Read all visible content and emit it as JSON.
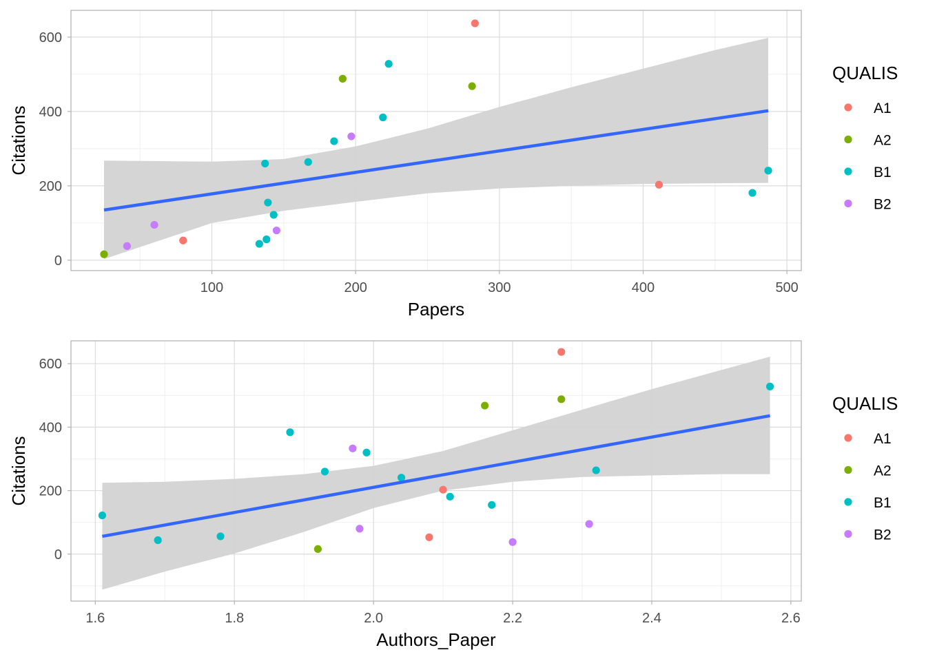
{
  "legend": {
    "title": "QUALIS",
    "entries": [
      {
        "label": "A1",
        "color": "#F8766D"
      },
      {
        "label": "A2",
        "color": "#7CAE00"
      },
      {
        "label": "B1",
        "color": "#00BFC4"
      },
      {
        "label": "B2",
        "color": "#C77CFF"
      }
    ]
  },
  "colors": {
    "fit_line": "#3366FF",
    "confidence_band": "#D3D3D3",
    "grid_major": "#DCDCDC",
    "grid_minor": "#EFEFEF",
    "panel_border": "#B3B3B3"
  },
  "chart_data": [
    {
      "type": "scatter",
      "xlabel": "Papers",
      "ylabel": "Citations",
      "xlim": [
        2,
        510
      ],
      "ylim": [
        -28,
        672
      ],
      "x_ticks": [
        100,
        200,
        300,
        400,
        500
      ],
      "y_ticks": [
        0,
        200,
        400,
        600
      ],
      "grid": true,
      "legend_position": "right",
      "series": [
        {
          "name": "A1",
          "points": [
            [
              80,
              53
            ],
            [
              283,
              637
            ],
            [
              411,
              203
            ]
          ]
        },
        {
          "name": "A2",
          "points": [
            [
              25,
              16
            ],
            [
              191,
              488
            ],
            [
              281,
              468
            ]
          ]
        },
        {
          "name": "B1",
          "points": [
            [
              133,
              44
            ],
            [
              137,
              260
            ],
            [
              138,
              56
            ],
            [
              139,
              155
            ],
            [
              143,
              122
            ],
            [
              167,
              264
            ],
            [
              185,
              320
            ],
            [
              219,
              384
            ],
            [
              223,
              528
            ],
            [
              476,
              181
            ],
            [
              487,
              241
            ]
          ]
        },
        {
          "name": "B2",
          "points": [
            [
              41,
              38
            ],
            [
              60,
              95
            ],
            [
              145,
              80
            ],
            [
              197,
              333
            ]
          ]
        }
      ],
      "fit": {
        "x": [
          25,
          487
        ],
        "y": [
          135,
          402
        ]
      },
      "confidence_band": {
        "x": [
          25,
          100,
          150,
          200,
          250,
          300,
          350,
          400,
          450,
          487
        ],
        "lower": [
          3,
          100,
          133,
          157,
          180,
          193,
          200,
          205,
          207,
          208
        ],
        "upper": [
          268,
          265,
          272,
          306,
          354,
          412,
          465,
          515,
          565,
          598
        ]
      }
    },
    {
      "type": "scatter",
      "xlabel": "Authors_Paper",
      "ylabel": "Citations",
      "xlim": [
        1.565,
        2.615
      ],
      "ylim": [
        -148,
        672
      ],
      "x_ticks": [
        1.6,
        1.8,
        2.0,
        2.2,
        2.4,
        2.6
      ],
      "y_ticks": [
        0,
        200,
        400,
        600
      ],
      "grid": true,
      "legend_position": "right",
      "series": [
        {
          "name": "A1",
          "points": [
            [
              2.08,
              53
            ],
            [
              2.1,
              203
            ],
            [
              2.27,
              637
            ]
          ]
        },
        {
          "name": "A2",
          "points": [
            [
              1.92,
              16
            ],
            [
              2.16,
              468
            ],
            [
              2.27,
              488
            ]
          ]
        },
        {
          "name": "B1",
          "points": [
            [
              1.61,
              122
            ],
            [
              1.69,
              44
            ],
            [
              1.78,
              56
            ],
            [
              1.88,
              384
            ],
            [
              1.93,
              260
            ],
            [
              1.99,
              320
            ],
            [
              2.04,
              241
            ],
            [
              2.11,
              181
            ],
            [
              2.17,
              155
            ],
            [
              2.32,
              264
            ],
            [
              2.57,
              528
            ]
          ]
        },
        {
          "name": "B2",
          "points": [
            [
              1.97,
              333
            ],
            [
              1.98,
              80
            ],
            [
              2.2,
              38
            ],
            [
              2.31,
              95
            ]
          ]
        }
      ],
      "fit": {
        "x": [
          1.61,
          2.57
        ],
        "y": [
          56,
          436
        ]
      },
      "confidence_band": {
        "x": [
          1.61,
          1.7,
          1.8,
          1.9,
          2.0,
          2.1,
          2.2,
          2.3,
          2.4,
          2.5,
          2.57
        ],
        "lower": [
          -112,
          -55,
          2,
          70,
          145,
          200,
          228,
          243,
          248,
          252,
          252
        ],
        "upper": [
          225,
          228,
          237,
          252,
          278,
          325,
          390,
          455,
          520,
          580,
          622
        ]
      }
    }
  ]
}
